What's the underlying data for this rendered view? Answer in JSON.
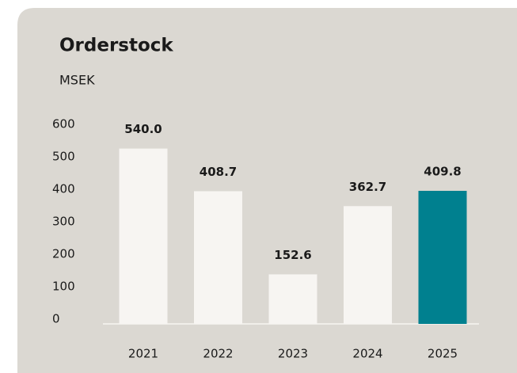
{
  "chart_data": {
    "type": "bar",
    "title": "Orderstock",
    "subtitle": "MSEK",
    "categories": [
      "2021",
      "2022",
      "2023",
      "2024",
      "2025"
    ],
    "values": [
      540.0,
      408.7,
      152.6,
      362.7,
      409.8
    ],
    "value_labels": [
      "540.0",
      "408.7",
      "152.6",
      "362.7",
      "409.8"
    ],
    "colors": [
      "#f7f5f2",
      "#f7f5f2",
      "#f7f5f2",
      "#f7f5f2",
      "#00808f"
    ],
    "ylim": [
      0,
      600
    ],
    "yticks": [
      0,
      100,
      200,
      300,
      400,
      500,
      600
    ],
    "grid": false
  }
}
